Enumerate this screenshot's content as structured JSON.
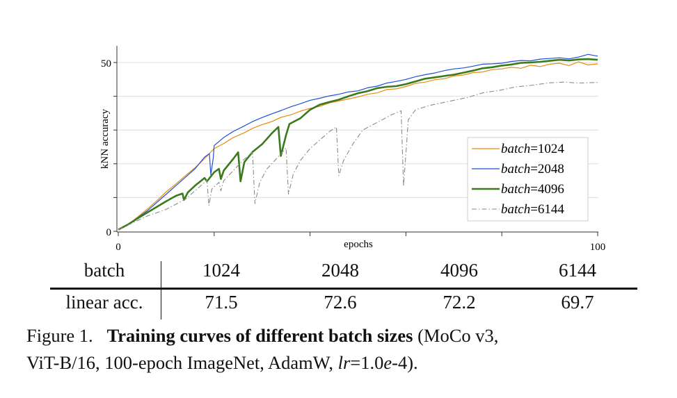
{
  "chart_data": {
    "type": "line",
    "title": "",
    "xlabel": "epochs",
    "ylabel": "kNN accuracy",
    "xlim": [
      0,
      100
    ],
    "ylim": [
      0,
      55
    ],
    "x_tick_labels": [
      "0",
      "100"
    ],
    "x_ticks": [
      0,
      20,
      40,
      60,
      80,
      100
    ],
    "y_tick_labels": [
      "0",
      "50"
    ],
    "y_ticks": [
      0,
      10,
      20,
      30,
      40,
      50
    ],
    "grid": "horizontal",
    "legend_position": "right",
    "series": [
      {
        "name_italic": "batch",
        "name_rest": "=1024",
        "color": "#e8890c",
        "style": "solid-thin",
        "points": [
          [
            0,
            0.5
          ],
          [
            2,
            2
          ],
          [
            4,
            4.2
          ],
          [
            6,
            6.5
          ],
          [
            8,
            9
          ],
          [
            10,
            11.7
          ],
          [
            12,
            14
          ],
          [
            14,
            16.5
          ],
          [
            16,
            18.8
          ],
          [
            18,
            21.5
          ],
          [
            20,
            24.5
          ],
          [
            22,
            26
          ],
          [
            24,
            27.8
          ],
          [
            26,
            29
          ],
          [
            28,
            30.5
          ],
          [
            30,
            31.6
          ],
          [
            32,
            32.5
          ],
          [
            34,
            33.8
          ],
          [
            36,
            34.5
          ],
          [
            38,
            35.6
          ],
          [
            40,
            36.4
          ],
          [
            42,
            37
          ],
          [
            44,
            38
          ],
          [
            46,
            38.6
          ],
          [
            48,
            39.2
          ],
          [
            50,
            39.8
          ],
          [
            52,
            40.6
          ],
          [
            54,
            41
          ],
          [
            56,
            42
          ],
          [
            58,
            42.2
          ],
          [
            60,
            42.9
          ],
          [
            62,
            43.8
          ],
          [
            64,
            44.2
          ],
          [
            66,
            44.9
          ],
          [
            68,
            45.2
          ],
          [
            70,
            46
          ],
          [
            72,
            46.3
          ],
          [
            74,
            47
          ],
          [
            76,
            47.2
          ],
          [
            78,
            47.9
          ],
          [
            80,
            48.1
          ],
          [
            82,
            48.6
          ],
          [
            84,
            48.3
          ],
          [
            86,
            49.2
          ],
          [
            88,
            48.8
          ],
          [
            90,
            49.5
          ],
          [
            92,
            49.8
          ],
          [
            94,
            49.1
          ],
          [
            96,
            50.2
          ],
          [
            98,
            49.3
          ],
          [
            100,
            49.6
          ]
        ]
      },
      {
        "name_italic": "batch",
        "name_rest": "=2048",
        "color": "#1f4fd8",
        "style": "solid-thin",
        "points": [
          [
            0,
            0.5
          ],
          [
            2,
            2
          ],
          [
            4,
            4
          ],
          [
            6,
            6
          ],
          [
            8,
            8.5
          ],
          [
            10,
            11
          ],
          [
            12,
            13.5
          ],
          [
            14,
            16
          ],
          [
            16,
            18.5
          ],
          [
            18,
            22
          ],
          [
            19,
            23
          ],
          [
            19.3,
            16.8
          ],
          [
            19.8,
            21.5
          ],
          [
            20,
            25.4
          ],
          [
            22,
            27.8
          ],
          [
            24,
            29.6
          ],
          [
            26,
            31
          ],
          [
            28,
            32.5
          ],
          [
            30,
            33.7
          ],
          [
            32,
            34.8
          ],
          [
            34,
            35.8
          ],
          [
            36,
            36.9
          ],
          [
            38,
            37.8
          ],
          [
            40,
            38.8
          ],
          [
            42,
            39.4
          ],
          [
            44,
            40.1
          ],
          [
            46,
            40.6
          ],
          [
            48,
            41.3
          ],
          [
            50,
            41.6
          ],
          [
            52,
            42.5
          ],
          [
            54,
            43
          ],
          [
            56,
            43.9
          ],
          [
            58,
            44.4
          ],
          [
            60,
            45
          ],
          [
            62,
            45.8
          ],
          [
            64,
            46.4
          ],
          [
            66,
            46.9
          ],
          [
            68,
            47.6
          ],
          [
            70,
            48.1
          ],
          [
            72,
            48.4
          ],
          [
            74,
            48.9
          ],
          [
            76,
            49.5
          ],
          [
            78,
            49.6
          ],
          [
            80,
            49.8
          ],
          [
            82,
            50.3
          ],
          [
            84,
            50.6
          ],
          [
            86,
            50.5
          ],
          [
            88,
            51
          ],
          [
            90,
            51.2
          ],
          [
            92,
            51.4
          ],
          [
            94,
            51.1
          ],
          [
            96,
            51.6
          ],
          [
            98,
            52.4
          ],
          [
            100,
            51.9
          ]
        ]
      },
      {
        "name_italic": "batch",
        "name_rest": "=4096",
        "color": "#3a7a1c",
        "style": "solid-thick",
        "points": [
          [
            0,
            0.5
          ],
          [
            2,
            2
          ],
          [
            4,
            3.8
          ],
          [
            6,
            5.5
          ],
          [
            8,
            7.2
          ],
          [
            10,
            8.9
          ],
          [
            12,
            10.5
          ],
          [
            13.4,
            11.2
          ],
          [
            13.7,
            9.3
          ],
          [
            14.5,
            11.5
          ],
          [
            16,
            13.5
          ],
          [
            18,
            15.8
          ],
          [
            18.5,
            14.8
          ],
          [
            20,
            17.5
          ],
          [
            21,
            18.5
          ],
          [
            21.4,
            15.5
          ],
          [
            22,
            18
          ],
          [
            24,
            21.5
          ],
          [
            25,
            23.4
          ],
          [
            25.5,
            14.8
          ],
          [
            26.3,
            20.5
          ],
          [
            28,
            23.5
          ],
          [
            30,
            25.8
          ],
          [
            32,
            29
          ],
          [
            33.4,
            30.9
          ],
          [
            33.9,
            22.3
          ],
          [
            35,
            28.5
          ],
          [
            35.7,
            31.8
          ],
          [
            38,
            33.5
          ],
          [
            40,
            36
          ],
          [
            42,
            37.5
          ],
          [
            44,
            38.3
          ],
          [
            46,
            39
          ],
          [
            48,
            40
          ],
          [
            50,
            40.9
          ],
          [
            52,
            41.5
          ],
          [
            54,
            42.4
          ],
          [
            56,
            42.8
          ],
          [
            58,
            43
          ],
          [
            60,
            43.6
          ],
          [
            62,
            44.4
          ],
          [
            64,
            45.2
          ],
          [
            66,
            45.6
          ],
          [
            68,
            46
          ],
          [
            70,
            46.4
          ],
          [
            72,
            47
          ],
          [
            74,
            47.6
          ],
          [
            76,
            48.3
          ],
          [
            78,
            48.6
          ],
          [
            80,
            49.1
          ],
          [
            82,
            49.4
          ],
          [
            84,
            49.9
          ],
          [
            86,
            50
          ],
          [
            88,
            50.2
          ],
          [
            90,
            50.5
          ],
          [
            92,
            50.8
          ],
          [
            94,
            50.6
          ],
          [
            96,
            50.9
          ],
          [
            98,
            51
          ],
          [
            100,
            50.8
          ]
        ]
      },
      {
        "name_italic": "batch",
        "name_rest": "=6144",
        "color": "#8a8a8a",
        "style": "dash-dot",
        "points": [
          [
            0,
            0.5
          ],
          [
            3,
            2.5
          ],
          [
            6,
            4.5
          ],
          [
            8,
            5.5
          ],
          [
            10,
            6.5
          ],
          [
            12,
            8
          ],
          [
            14,
            9.5
          ],
          [
            16,
            12
          ],
          [
            18.5,
            15.1
          ],
          [
            18.9,
            7.6
          ],
          [
            19.5,
            12.5
          ],
          [
            21,
            14.5
          ],
          [
            21.4,
            12
          ],
          [
            22,
            15
          ],
          [
            24,
            18
          ],
          [
            26,
            21
          ],
          [
            28,
            23.4
          ],
          [
            28.5,
            8.2
          ],
          [
            29.5,
            14.5
          ],
          [
            31,
            18.5
          ],
          [
            33,
            21.5
          ],
          [
            35,
            24.7
          ],
          [
            35.5,
            11
          ],
          [
            36.5,
            17
          ],
          [
            38,
            21
          ],
          [
            40,
            24.5
          ],
          [
            42,
            27
          ],
          [
            44,
            29.5
          ],
          [
            45.5,
            30.9
          ],
          [
            46,
            16.5
          ],
          [
            47,
            21
          ],
          [
            49,
            26
          ],
          [
            51,
            30
          ],
          [
            53,
            31.5
          ],
          [
            55,
            33
          ],
          [
            57,
            34.5
          ],
          [
            59,
            35.7
          ],
          [
            59.5,
            13.4
          ],
          [
            60.5,
            33
          ],
          [
            62,
            36
          ],
          [
            65,
            37.3
          ],
          [
            68,
            38.2
          ],
          [
            70,
            38.8
          ],
          [
            73,
            39.7
          ],
          [
            76,
            41
          ],
          [
            80,
            41.9
          ],
          [
            83,
            42.8
          ],
          [
            86,
            43.2
          ],
          [
            90,
            44
          ],
          [
            93,
            44.2
          ],
          [
            96,
            43.9
          ],
          [
            100,
            44.1
          ]
        ]
      }
    ]
  },
  "table": {
    "row_header": [
      "batch",
      "linear acc."
    ],
    "batch": [
      "1024",
      "2048",
      "4096",
      "6144"
    ],
    "linear_acc": [
      "71.5",
      "72.6",
      "72.2",
      "69.7"
    ]
  },
  "caption": {
    "label": "Figure 1.",
    "bold": "Training curves of different batch sizes",
    "line1_rest": " (MoCo v3,",
    "line2_a": "ViT-B/16, 100-epoch ImageNet, AdamW, ",
    "line2_lr": "lr",
    "line2_b": "=1.0",
    "line2_e": "e",
    "line2_c": "-4)."
  }
}
